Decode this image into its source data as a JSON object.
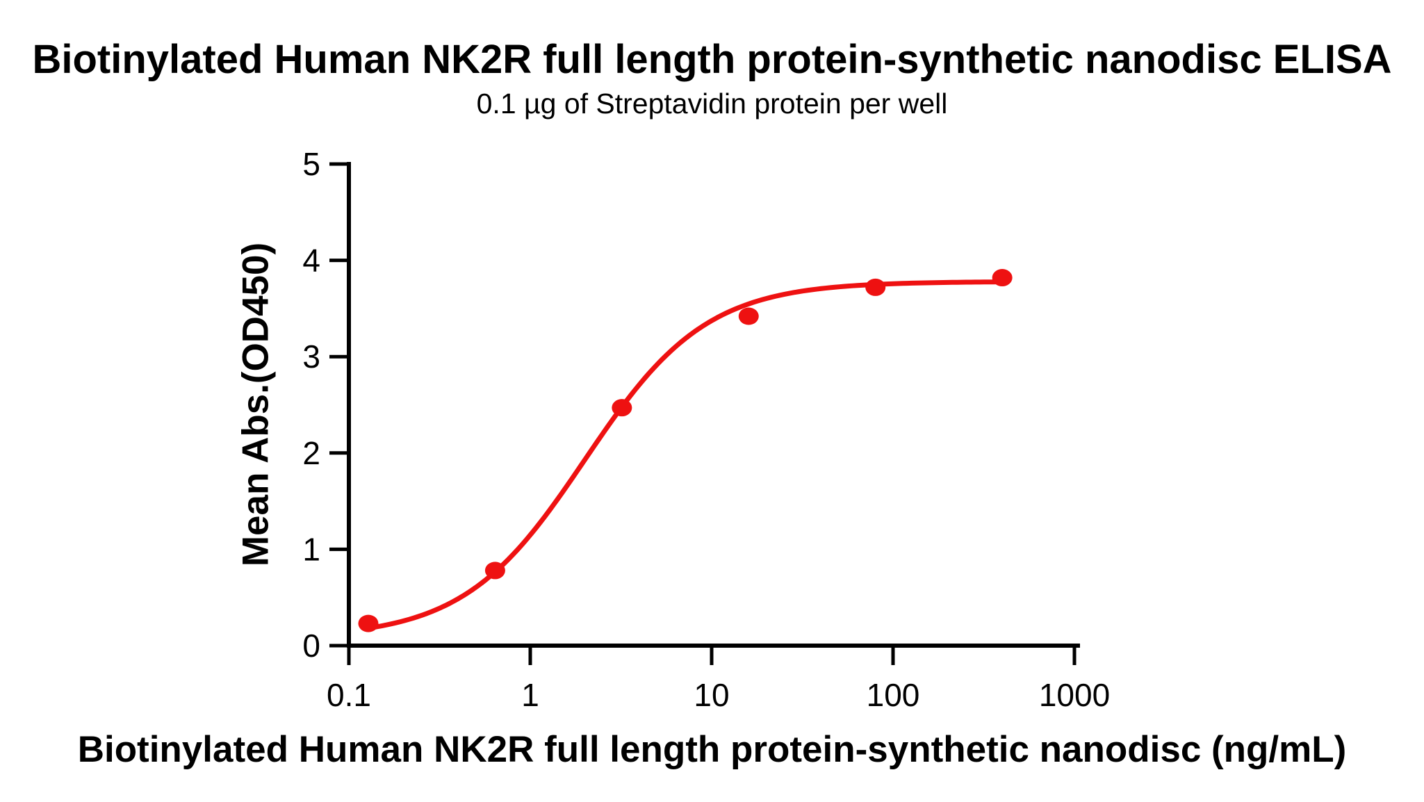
{
  "chart_data": {
    "type": "scatter",
    "title": "Biotinylated Human NK2R full length protein-synthetic nanodisc ELISA",
    "subtitle": "0.1 µg of Streptavidin protein per well",
    "xlabel": "Biotinylated Human NK2R full length protein-synthetic nanodisc (ng/mL)",
    "ylabel": "Mean Abs.(OD450)",
    "x_scale": "log10",
    "xlim": [
      0.1,
      1000
    ],
    "ylim": [
      0,
      5
    ],
    "x_ticks": [
      0.1,
      1,
      10,
      100,
      1000
    ],
    "x_tick_labels": [
      "0.1",
      "1",
      "10",
      "100",
      "1000"
    ],
    "y_ticks": [
      0,
      1,
      2,
      3,
      4,
      5
    ],
    "y_tick_labels": [
      "0",
      "1",
      "2",
      "3",
      "4",
      "5"
    ],
    "grid": false,
    "legend": "none",
    "axis_color": "#000000",
    "series": [
      {
        "name": "Biotinylated Human NK2R full length protein-synthetic nanodisc",
        "color": "#EE1111",
        "marker": "circle",
        "points": [
          {
            "x": 0.128,
            "y": 0.23
          },
          {
            "x": 0.64,
            "y": 0.78
          },
          {
            "x": 3.2,
            "y": 2.47
          },
          {
            "x": 16,
            "y": 3.42
          },
          {
            "x": 80,
            "y": 3.72
          },
          {
            "x": 400,
            "y": 3.82
          }
        ],
        "fit_4pl": {
          "bottom": 0.08,
          "top": 3.78,
          "ec50": 2.0,
          "hill": 1.3
        },
        "fit_x_range": [
          0.128,
          400
        ]
      }
    ]
  }
}
